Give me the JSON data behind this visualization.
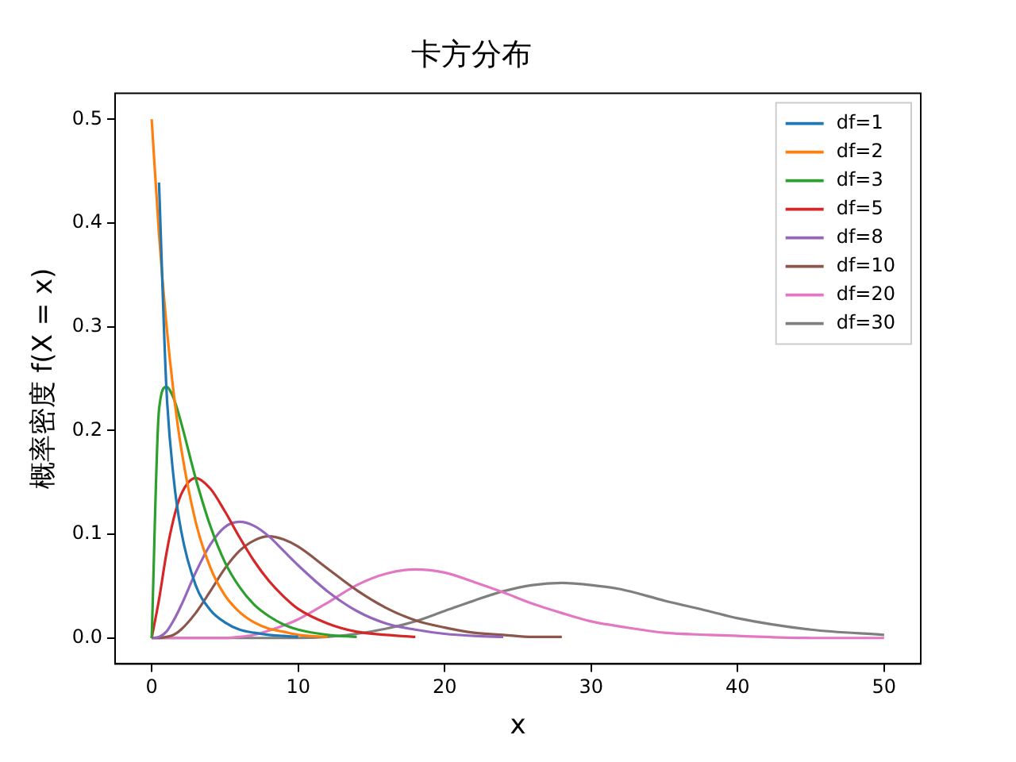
{
  "chart_data": {
    "type": "line",
    "title": "卡方分布",
    "xlabel": "x",
    "ylabel": "概率密度 f(X = x)",
    "x": [
      0,
      0.5,
      1,
      1.5,
      2,
      3,
      4,
      5,
      6,
      7,
      8,
      9,
      10,
      12,
      14,
      16,
      18,
      20,
      22,
      24,
      26,
      28,
      30,
      32,
      35,
      38,
      40,
      45,
      50
    ],
    "series": [
      {
        "name": "df=1",
        "color": "#1f77b4",
        "values": [
          null,
          0.439,
          0.242,
          0.154,
          0.104,
          0.051,
          0.027,
          0.015,
          0.008,
          0.005,
          0.003,
          0.002,
          0.001,
          null,
          null,
          null,
          null,
          null,
          null,
          null,
          null,
          null,
          null,
          null,
          null,
          null,
          null,
          null,
          null
        ]
      },
      {
        "name": "df=2",
        "color": "#ff7f0e",
        "values": [
          0.5,
          0.389,
          0.303,
          0.236,
          0.184,
          0.112,
          0.068,
          0.041,
          0.025,
          0.015,
          0.009,
          0.006,
          0.003,
          0.001,
          null,
          null,
          null,
          null,
          null,
          null,
          null,
          null,
          null,
          null,
          null,
          null,
          null,
          null,
          null
        ]
      },
      {
        "name": "df=3",
        "color": "#2ca02c",
        "values": [
          0,
          0.22,
          0.242,
          0.231,
          0.208,
          0.154,
          0.108,
          0.073,
          0.049,
          0.032,
          0.021,
          0.013,
          0.008,
          0.003,
          0.001,
          null,
          null,
          null,
          null,
          null,
          null,
          null,
          null,
          null,
          null,
          null,
          null,
          null,
          null
        ]
      },
      {
        "name": "df=5",
        "color": "#d62728",
        "values": [
          0,
          0.037,
          0.081,
          0.115,
          0.138,
          0.154,
          0.144,
          0.122,
          0.097,
          0.074,
          0.055,
          0.04,
          0.028,
          0.014,
          0.006,
          0.003,
          0.001,
          null,
          null,
          null,
          null,
          null,
          null,
          null,
          null,
          null,
          null,
          null,
          null
        ]
      },
      {
        "name": "df=8",
        "color": "#9467bd",
        "values": [
          0,
          0.001,
          0.006,
          0.017,
          0.031,
          0.063,
          0.09,
          0.107,
          0.112,
          0.108,
          0.098,
          0.084,
          0.07,
          0.045,
          0.026,
          0.014,
          0.008,
          0.004,
          0.002,
          0.001,
          null,
          null,
          null,
          null,
          null,
          null,
          null,
          null,
          null
        ]
      },
      {
        "name": "df=10",
        "color": "#8c564b",
        "values": [
          0,
          0,
          0.001,
          0.003,
          0.008,
          0.024,
          0.045,
          0.067,
          0.084,
          0.094,
          0.098,
          0.095,
          0.088,
          0.067,
          0.046,
          0.029,
          0.017,
          0.01,
          0.005,
          0.003,
          0.001,
          0.001,
          null,
          null,
          null,
          null,
          null,
          null,
          null
        ]
      },
      {
        "name": "df=20",
        "color": "#e377c2",
        "values": [
          0,
          0,
          0,
          0,
          0,
          0,
          0,
          0,
          0.001,
          0.003,
          0.007,
          0.012,
          0.018,
          0.034,
          0.051,
          0.062,
          0.066,
          0.063,
          0.054,
          0.044,
          0.033,
          0.024,
          0.016,
          0.011,
          0.005,
          0.003,
          0.002,
          0,
          0
        ]
      },
      {
        "name": "df=30",
        "color": "#7f7f7f",
        "values": [
          0,
          0,
          0,
          0,
          0,
          0,
          0,
          0,
          0,
          0,
          0,
          0,
          0,
          0.001,
          0.004,
          0.009,
          0.016,
          0.026,
          0.036,
          0.045,
          0.051,
          0.053,
          0.051,
          0.047,
          0.036,
          0.026,
          0.019,
          0.008,
          0.003
        ]
      }
    ],
    "xlim": [
      -2.5,
      52.5
    ],
    "xticks": [
      0,
      10,
      20,
      30,
      40,
      50
    ],
    "ylim": [
      -0.025,
      0.525
    ],
    "yticks": [
      {
        "value": 0,
        "label": "0.0"
      },
      0.1,
      0.2,
      0.3,
      0.4,
      0.5
    ],
    "legend": "top right",
    "grid": false,
    "marker": "none",
    "line_style": "solid"
  }
}
